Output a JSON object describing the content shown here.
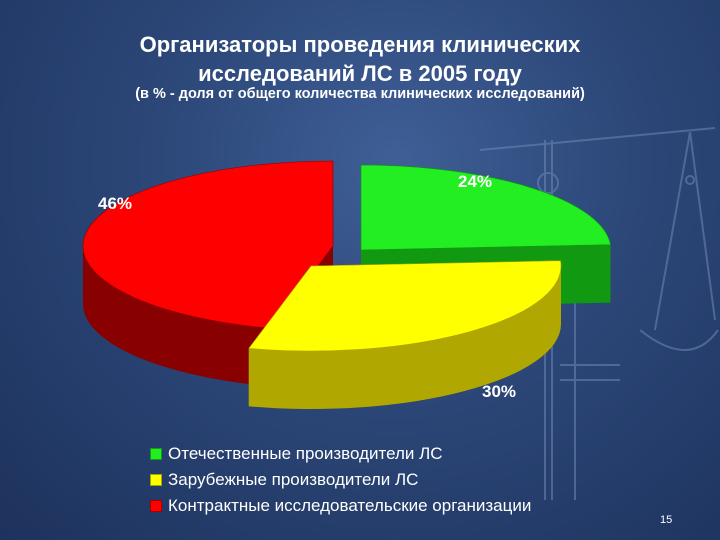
{
  "slide": {
    "title_line1": "Организаторы проведения клинических",
    "title_line2": "исследований ЛС в 2005 году",
    "subtitle": "(в % - доля от общего количества клинических исследований)",
    "page_number": "15"
  },
  "chart_data": {
    "type": "pie",
    "title": "Организаторы проведения клинических исследований ЛС в 2005 году",
    "subtitle": "(в % - доля от общего количества клинических исследований)",
    "categories": [
      "Отечественные производители ЛС",
      "Зарубежные производители ЛС",
      "Контрактные исследовательские организации"
    ],
    "values": [
      24,
      30,
      46
    ],
    "labels": [
      "24%",
      "30%",
      "46%"
    ],
    "colors": [
      "#22ee22",
      "#ffff00",
      "#ff0000"
    ],
    "side_colors": [
      "#119911",
      "#b0a800",
      "#880000"
    ],
    "legend_position": "bottom",
    "three_d": true,
    "exploded": true
  }
}
